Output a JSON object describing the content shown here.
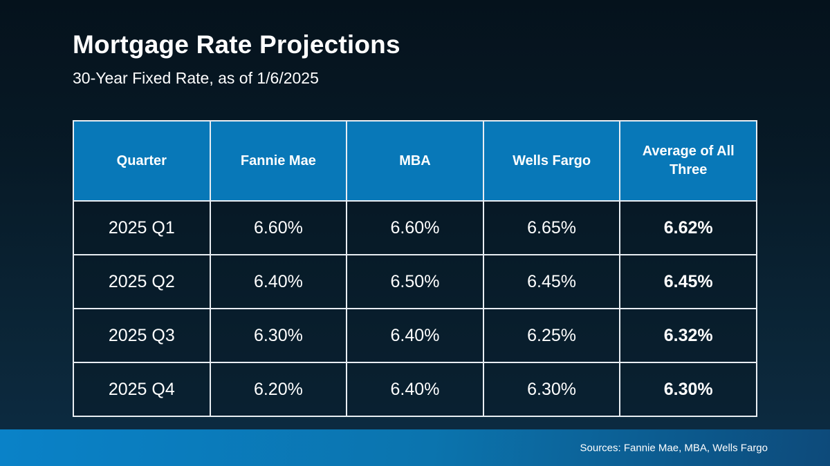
{
  "slide": {
    "title": "Mortgage Rate Projections",
    "subtitle": "30-Year Fixed Rate, as of 1/6/2025",
    "footer": {
      "sources": "Sources: Fannie Mae, MBA, Wells Fargo"
    }
  },
  "table": {
    "columns": [
      "Quarter",
      "Fannie Mae",
      "MBA",
      "Wells Fargo",
      "Average of All Three"
    ],
    "rows": [
      [
        "2025 Q1",
        "6.60%",
        "6.60%",
        "6.65%",
        "6.62%"
      ],
      [
        "2025 Q2",
        "6.40%",
        "6.50%",
        "6.45%",
        "6.45%"
      ],
      [
        "2025 Q3",
        "6.30%",
        "6.40%",
        "6.25%",
        "6.32%"
      ],
      [
        "2025 Q4",
        "6.20%",
        "6.40%",
        "6.30%",
        "6.30%"
      ]
    ]
  },
  "chart_data": {
    "type": "table",
    "title": "Mortgage Rate Projections",
    "subtitle": "30-Year Fixed Rate, as of 1/6/2025",
    "columns": [
      "Quarter",
      "Fannie Mae",
      "MBA",
      "Wells Fargo",
      "Average of All Three"
    ],
    "categories": [
      "2025 Q1",
      "2025 Q2",
      "2025 Q3",
      "2025 Q4"
    ],
    "series": [
      {
        "name": "Fannie Mae",
        "values": [
          6.6,
          6.4,
          6.3,
          6.2
        ]
      },
      {
        "name": "MBA",
        "values": [
          6.6,
          6.5,
          6.4,
          6.4
        ]
      },
      {
        "name": "Wells Fargo",
        "values": [
          6.65,
          6.45,
          6.25,
          6.3
        ]
      },
      {
        "name": "Average of All Three",
        "values": [
          6.62,
          6.45,
          6.32,
          6.3
        ]
      }
    ],
    "unit": "%",
    "annotations": [
      "Sources: Fannie Mae, MBA, Wells Fargo"
    ]
  },
  "colors": {
    "header_blue": "#0878b8",
    "border_white": "#e9eef3",
    "bg_top": "#05121c",
    "bg_bottom": "#0d2c44",
    "footer_left": "#0a82c8",
    "footer_right": "#0d4a7a",
    "text": "#ffffff"
  }
}
